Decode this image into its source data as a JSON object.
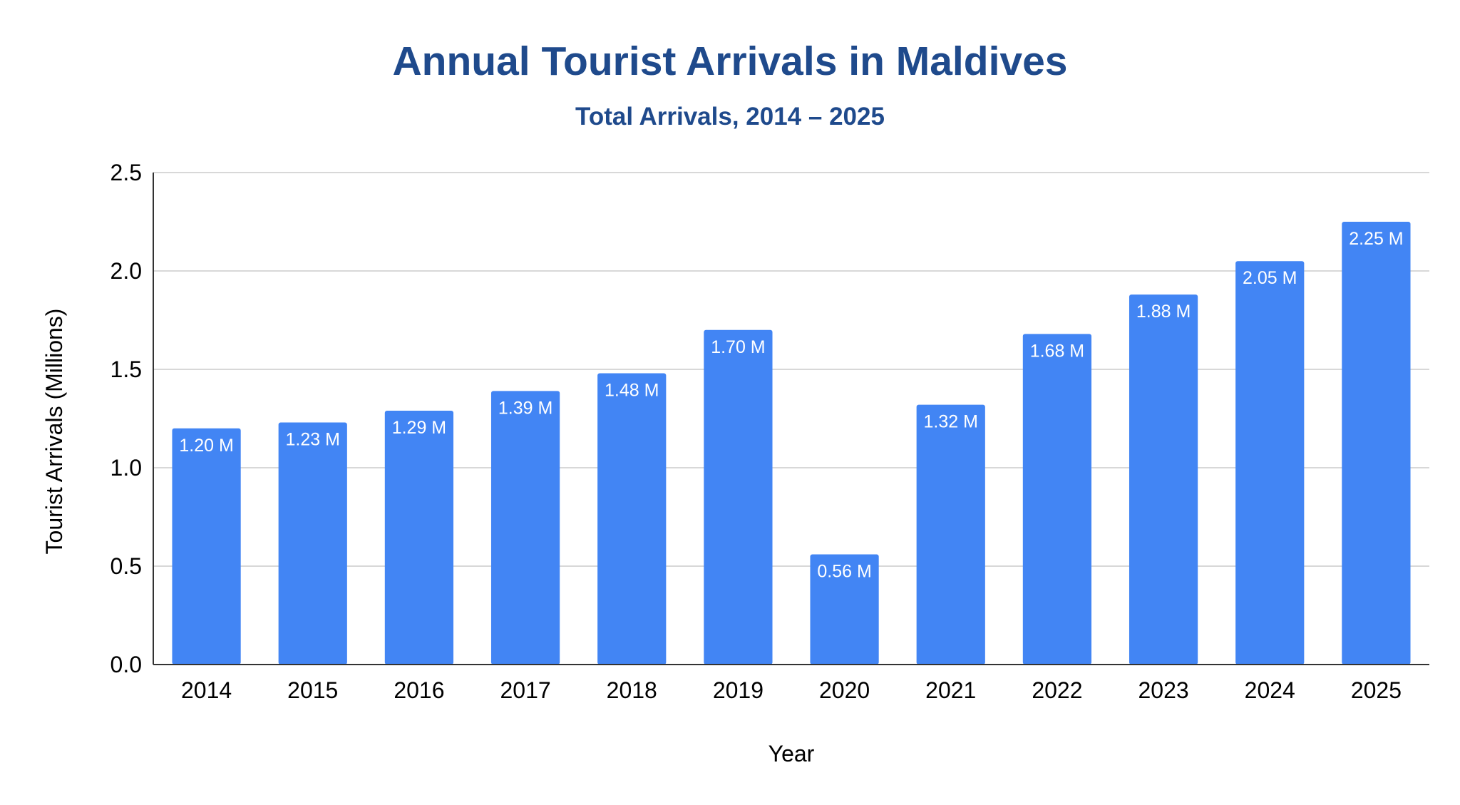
{
  "chart_data": {
    "type": "bar",
    "title": "Annual Tourist Arrivals in Maldives",
    "subtitle": "Total Arrivals, 2014 – 2025",
    "xlabel": "Year",
    "ylabel": "Tourist Arrivals (Millions)",
    "categories": [
      "2014",
      "2015",
      "2016",
      "2017",
      "2018",
      "2019",
      "2020",
      "2021",
      "2022",
      "2023",
      "2024",
      "2025"
    ],
    "series": [
      {
        "values": [
          1.2,
          1.23,
          1.29,
          1.39,
          1.48,
          1.7,
          0.56,
          1.32,
          1.68,
          1.88,
          2.05,
          2.25
        ],
        "data_labels": [
          "1.20 M",
          "1.23 M",
          "1.29 M",
          "1.39 M",
          "1.48 M",
          "1.70 M",
          "0.56 M",
          "1.32 M",
          "1.68 M",
          "1.88 M",
          "2.05 M",
          "2.25 M"
        ]
      }
    ],
    "ylim": [
      0,
      2.5
    ],
    "yticks": [
      "0.0",
      "0.5",
      "1.0",
      "1.5",
      "2.0",
      "2.5"
    ],
    "grid": true,
    "legend": "none"
  },
  "colors": {
    "bar": "#4285f4",
    "title": "#1f4a8c",
    "gridline": "#cccccc",
    "axis": "#333333",
    "data_label": "#ffffff"
  }
}
